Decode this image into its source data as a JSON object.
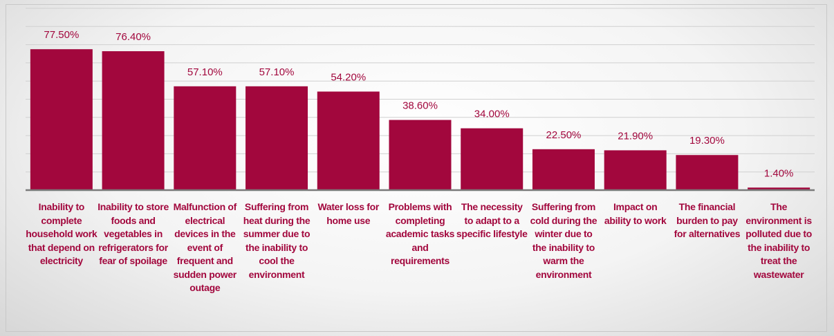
{
  "chart_data": {
    "type": "bar",
    "categories": [
      "Inability to complete household work that depend on electricity",
      "Inability to store foods and vegetables in refrigerators for fear of spoilage",
      "Malfunction of electrical devices in the event of frequent and sudden power outage",
      "Suffering from heat during the summer due to the inability to cool the environment",
      "Water loss for home use",
      "Problems with completing academic tasks and requirements",
      "The necessity to adapt to a specific lifestyle",
      "Suffering from cold during the winter due to the inability to warm the environment",
      "Impact on ability to work",
      "The financial burden to pay for alternatives",
      "The environment is polluted due to the inability to treat the wastewater"
    ],
    "values": [
      77.5,
      76.4,
      57.1,
      57.1,
      54.2,
      38.6,
      34.0,
      22.5,
      21.9,
      19.3,
      1.4
    ],
    "value_labels": [
      "77.50%",
      "76.40%",
      "57.10%",
      "57.10%",
      "54.20%",
      "38.60%",
      "34.00%",
      "22.50%",
      "21.90%",
      "19.30%",
      "1.40%"
    ],
    "color": "#a2073d",
    "ylim": [
      0,
      100
    ],
    "yticks": [
      0,
      10,
      20,
      30,
      40,
      50,
      60,
      70,
      80,
      90,
      100
    ],
    "grid": true
  }
}
